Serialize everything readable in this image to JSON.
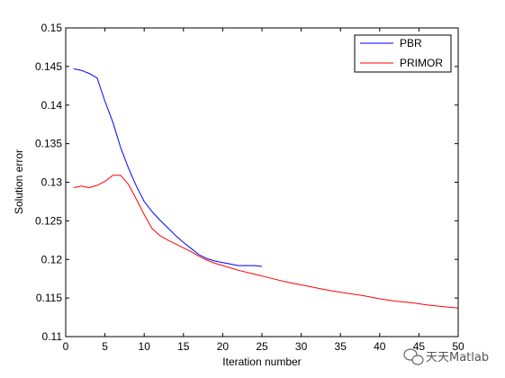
{
  "chart_data": {
    "type": "line",
    "title": "",
    "xlabel": "Iteration number",
    "ylabel": "Solution error",
    "xlim": [
      0,
      50
    ],
    "ylim": [
      0.11,
      0.15
    ],
    "xticks": [
      0,
      5,
      10,
      15,
      20,
      25,
      30,
      35,
      40,
      45,
      50
    ],
    "yticks": [
      0.11,
      0.115,
      0.12,
      0.125,
      0.13,
      0.135,
      0.14,
      0.145,
      0.15
    ],
    "xtick_labels": [
      "0",
      "5",
      "10",
      "15",
      "20",
      "25",
      "30",
      "35",
      "40",
      "45",
      "50"
    ],
    "ytick_labels": [
      "0.11",
      "0.115",
      "0.12",
      "0.125",
      "0.13",
      "0.135",
      "0.14",
      "0.145",
      "0.15"
    ],
    "grid": false,
    "legend_position": "top-right",
    "series": [
      {
        "name": "PBR",
        "color": "#0000ff",
        "x": [
          1,
          2,
          3,
          4,
          5,
          6,
          7,
          8,
          9,
          10,
          11,
          12,
          13,
          14,
          15,
          16,
          17,
          18,
          19,
          20,
          21,
          22,
          23,
          24,
          25
        ],
        "y": [
          0.1447,
          0.1445,
          0.1441,
          0.1435,
          0.1405,
          0.1378,
          0.1345,
          0.1318,
          0.1295,
          0.1275,
          0.1262,
          0.1251,
          0.1241,
          0.1231,
          0.1222,
          0.1214,
          0.1206,
          0.1201,
          0.1198,
          0.1196,
          0.1194,
          0.1192,
          0.1192,
          0.1192,
          0.1191
        ]
      },
      {
        "name": "PRIMOR",
        "color": "#ff0000",
        "x": [
          1,
          2,
          3,
          4,
          5,
          6,
          7,
          8,
          9,
          10,
          11,
          12,
          13,
          14,
          15,
          16,
          17,
          18,
          19,
          20,
          22,
          24,
          26,
          28,
          30,
          32,
          34,
          36,
          38,
          40,
          42,
          44,
          46,
          48,
          50
        ],
        "y": [
          0.1293,
          0.1295,
          0.1293,
          0.1296,
          0.1301,
          0.1309,
          0.1309,
          0.1297,
          0.1278,
          0.1258,
          0.124,
          0.1231,
          0.1225,
          0.122,
          0.1215,
          0.121,
          0.1204,
          0.1199,
          0.1195,
          0.1192,
          0.1186,
          0.1181,
          0.1176,
          0.1171,
          0.1167,
          0.1163,
          0.1159,
          0.1156,
          0.1153,
          0.1149,
          0.1146,
          0.1144,
          0.1141,
          0.1139,
          0.1137
        ]
      }
    ]
  },
  "watermark": {
    "text": "天天Matlab",
    "icon": "wechat-icon"
  }
}
